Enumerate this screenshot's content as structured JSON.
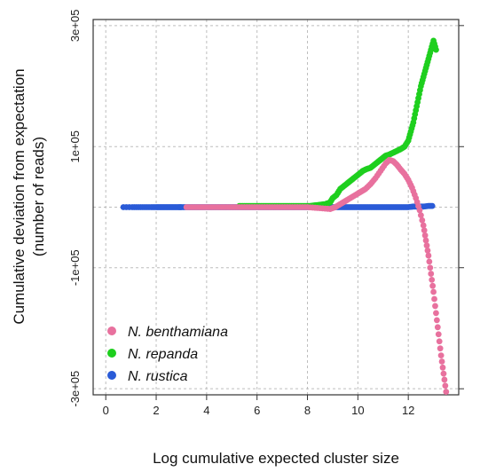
{
  "chart_data": {
    "type": "scatter",
    "title": "",
    "xlabel": "Log cumulative expected cluster size",
    "ylabel_line1": "Cumulative deviation from expectation",
    "ylabel_line2": "(number of reads)",
    "xlim": [
      -0.5,
      14
    ],
    "ylim": [
      -310000,
      310000
    ],
    "x_ticks": [
      0,
      2,
      4,
      6,
      8,
      10,
      12
    ],
    "y_ticks": [
      -300000,
      -100000,
      100000,
      300000
    ],
    "y_tick_labels": [
      "-3e+05",
      "-1e+05",
      "1e+05",
      "3e+05"
    ],
    "x_tick_labels": [
      "0",
      "2",
      "4",
      "6",
      "8",
      "10",
      "12"
    ],
    "grid": true,
    "legend_position": "bottom-left",
    "colors": {
      "N. benthamiana": "#e8719e",
      "N. repanda": "#1ecf1e",
      "N. rustica": "#2a5bd7"
    },
    "series": [
      {
        "name": "N. rustica",
        "color": "#2a5bd7",
        "x": [
          0.7,
          1.05,
          1.3,
          1.55,
          1.8,
          2.0,
          2.15,
          2.3,
          2.45,
          2.6,
          2.75,
          2.9,
          3.0,
          3.2,
          3.4,
          3.6,
          3.8,
          4.0,
          4.2,
          4.4,
          4.6,
          4.8,
          5.0,
          5.2,
          5.4,
          5.6,
          5.8,
          6.0,
          6.2,
          6.4,
          6.6,
          6.8,
          7.0,
          7.2,
          7.4,
          7.6,
          7.8,
          8.0,
          8.2,
          8.4,
          8.6,
          8.8,
          9.0,
          9.2,
          9.4,
          9.6,
          9.8,
          10.0,
          10.2,
          10.4,
          10.6,
          10.8,
          11.0,
          11.2,
          11.4,
          11.6,
          11.8,
          12.0,
          12.2,
          12.4,
          12.6,
          12.8,
          12.95
        ],
        "y": [
          0,
          0,
          0,
          0,
          0,
          0,
          0,
          0,
          0,
          0,
          0,
          0,
          0,
          0,
          0,
          0,
          0,
          0,
          0,
          0,
          0,
          0,
          0,
          0,
          0,
          0,
          0,
          0,
          0,
          0,
          0,
          0,
          0,
          0,
          0,
          0,
          0,
          0,
          0,
          0,
          0,
          0,
          0,
          0,
          0,
          0,
          0,
          0,
          0,
          0,
          0,
          0,
          0,
          0,
          0,
          0,
          0,
          0,
          1000,
          1000,
          1000,
          2000,
          2000
        ]
      },
      {
        "name": "N. repanda",
        "color": "#1ecf1e",
        "x": [
          5.3,
          5.5,
          5.7,
          5.9,
          6.1,
          6.3,
          6.5,
          6.7,
          6.9,
          7.1,
          7.3,
          7.5,
          7.7,
          7.9,
          8.1,
          8.3,
          8.5,
          8.7,
          8.9,
          9.0,
          9.15,
          9.3,
          9.45,
          9.6,
          9.75,
          9.9,
          10.05,
          10.2,
          10.35,
          10.5,
          10.65,
          10.8,
          10.95,
          11.1,
          11.25,
          11.4,
          11.55,
          11.7,
          11.85,
          12.0,
          12.1,
          12.2,
          12.3,
          12.4,
          12.5,
          12.6,
          12.7,
          12.8,
          12.9,
          13.0,
          13.1
        ],
        "y": [
          2000,
          2000,
          2000,
          2000,
          2000,
          2000,
          2000,
          2000,
          2000,
          2000,
          2000,
          2000,
          2000,
          2000,
          2000,
          3000,
          4000,
          5000,
          8000,
          15000,
          20000,
          30000,
          35000,
          40000,
          45000,
          50000,
          55000,
          60000,
          63000,
          65000,
          70000,
          75000,
          80000,
          85000,
          87000,
          90000,
          93000,
          96000,
          100000,
          110000,
          125000,
          140000,
          160000,
          180000,
          200000,
          215000,
          230000,
          245000,
          260000,
          275000,
          260000
        ]
      },
      {
        "name": "N. benthamiana",
        "color": "#e8719e",
        "x": [
          3.2,
          3.5,
          3.8,
          4.1,
          4.4,
          4.7,
          5.0,
          5.3,
          5.6,
          5.9,
          6.2,
          6.5,
          6.8,
          7.1,
          7.4,
          7.7,
          8.0,
          8.3,
          8.6,
          8.9,
          9.1,
          9.3,
          9.5,
          9.7,
          9.9,
          10.1,
          10.3,
          10.5,
          10.7,
          10.9,
          11.1,
          11.25,
          11.4,
          11.55,
          11.7,
          11.85,
          12.0,
          12.15,
          12.3,
          12.45,
          12.6,
          12.7,
          12.8,
          12.9,
          13.0,
          13.1,
          13.2,
          13.3,
          13.4,
          13.5
        ],
        "y": [
          0,
          0,
          0,
          0,
          0,
          0,
          0,
          0,
          0,
          0,
          0,
          0,
          0,
          0,
          0,
          0,
          0,
          -1000,
          -2000,
          -3000,
          0,
          5000,
          10000,
          15000,
          20000,
          25000,
          30000,
          38000,
          48000,
          60000,
          72000,
          78000,
          76000,
          70000,
          62000,
          55000,
          45000,
          32000,
          15000,
          -5000,
          -30000,
          -55000,
          -80000,
          -110000,
          -140000,
          -175000,
          -210000,
          -245000,
          -275000,
          -305000
        ]
      }
    ],
    "legend": [
      {
        "label": "N. benthamiana",
        "color": "#e8719e"
      },
      {
        "label": "N. repanda",
        "color": "#1ecf1e"
      },
      {
        "label": "N. rustica",
        "color": "#2a5bd7"
      }
    ]
  }
}
